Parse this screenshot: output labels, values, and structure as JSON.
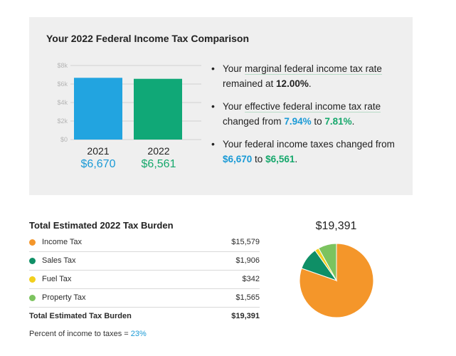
{
  "comparison": {
    "title": "Your 2022 Federal Income Tax Comparison",
    "chart_data": {
      "type": "bar",
      "categories": [
        "2021",
        "2022"
      ],
      "values": [
        6670,
        6561
      ],
      "ylim": [
        0,
        8000
      ],
      "yticks": [
        "$0",
        "$2k",
        "$4k",
        "$6k",
        "$8k"
      ],
      "colors": [
        "#22a4e0",
        "#10a877"
      ],
      "value_labels": [
        "$6,670",
        "$6,561"
      ],
      "grid": true
    },
    "bullets": [
      {
        "pre": "Your ",
        "link": "marginal federal income tax rate",
        "mid": " remained at ",
        "v1": "12.00%",
        "end": "."
      },
      {
        "pre": "Your ",
        "link": "effective federal income tax rate",
        "mid": " changed from ",
        "v1": "7.94%",
        "to": " to ",
        "v2": "7.81%",
        "end": "."
      },
      {
        "pre": "Your federal income taxes changed from ",
        "v1": "$6,670",
        "to": " to ",
        "v2": "$6,561",
        "end": "."
      }
    ]
  },
  "burden": {
    "title": "Total Estimated 2022 Tax Burden",
    "rows": [
      {
        "label": "Income Tax",
        "value": "$15,579",
        "color": "#f4962a"
      },
      {
        "label": "Sales Tax",
        "value": "$1,906",
        "color": "#0f8f66"
      },
      {
        "label": "Fuel Tax",
        "value": "$342",
        "color": "#f2cf1d"
      },
      {
        "label": "Property Tax",
        "value": "$1,565",
        "color": "#7cc35f"
      }
    ],
    "total_label": "Total Estimated Tax Burden",
    "total_value": "$19,391",
    "percent_label": "Percent of income to taxes = ",
    "percent_value": "23%"
  },
  "chart_data": {
    "type": "pie",
    "total_label": "$19,391",
    "labels": [
      "Income Tax",
      "Sales Tax",
      "Fuel Tax",
      "Property Tax"
    ],
    "values": [
      15579,
      1906,
      342,
      1565
    ],
    "colors": [
      "#f4962a",
      "#0f8f66",
      "#f2cf1d",
      "#7cc35f"
    ]
  }
}
